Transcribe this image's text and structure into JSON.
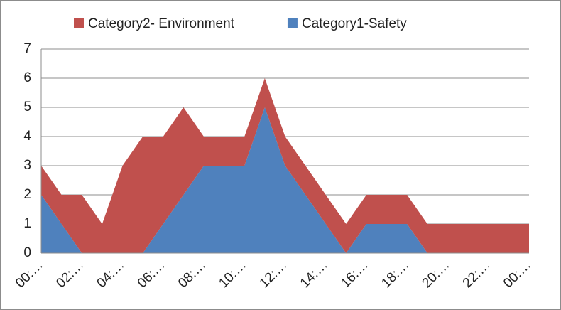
{
  "chart_data": {
    "type": "stacked_area",
    "categories": [
      "00:…",
      null,
      "02:…",
      null,
      "04:…",
      null,
      "06:…",
      null,
      "08:…",
      null,
      "10:…",
      null,
      "12:…",
      null,
      "14:…",
      null,
      "16:…",
      null,
      "18:…",
      null,
      "20:…",
      null,
      "22:…",
      null,
      "00:…"
    ],
    "series": [
      {
        "name": "Category1-Safety",
        "color": "#4f81bd",
        "values": [
          2,
          1,
          0,
          0,
          0,
          0,
          1,
          2,
          3,
          3,
          3,
          5,
          3,
          2,
          1,
          0,
          1,
          1,
          1,
          0,
          0,
          0,
          0,
          0,
          0
        ]
      },
      {
        "name": "Category2- Environment",
        "color": "#c0504d",
        "values": [
          1,
          1,
          2,
          1,
          3,
          4,
          3,
          3,
          1,
          1,
          1,
          1,
          1,
          1,
          1,
          1,
          1,
          1,
          1,
          1,
          1,
          1,
          1,
          1,
          1
        ]
      }
    ],
    "ylim": [
      0,
      7
    ],
    "yticks": [
      0,
      1,
      2,
      3,
      4,
      5,
      6,
      7
    ],
    "grid": true,
    "legend": "top"
  }
}
